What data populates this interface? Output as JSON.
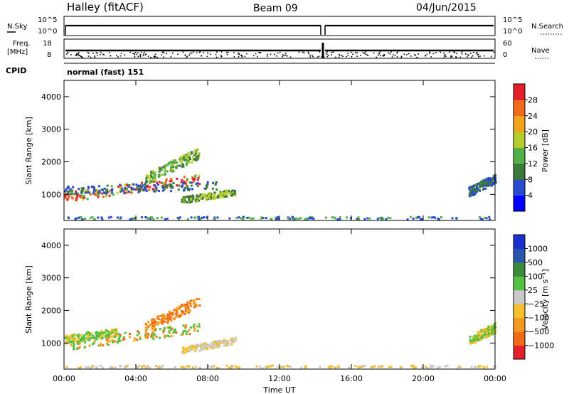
{
  "header": {
    "station": "Halley (fitACF)",
    "beam": "Beam 09",
    "date": "04/Jun/2015"
  },
  "panels": {
    "nsky": {
      "label": "N.Sky",
      "ticks": [
        "10^5",
        "10^0"
      ]
    },
    "nsearch": {
      "label": "N.Search",
      "ticks": [
        "10^5",
        "10^0"
      ]
    },
    "freq": {
      "label_top": "Freq.",
      "label_bottom": "[MHz]",
      "ticks": [
        "18",
        "8"
      ]
    },
    "nave": {
      "label": "Nave",
      "ticks": [
        "60",
        "0"
      ]
    },
    "cpid": {
      "label": "CPID",
      "text": "normal (fast) 151"
    }
  },
  "chart_data": [
    {
      "type": "heatmap",
      "ylabel": "Slant Range [km]",
      "ylim": [
        200,
        4500
      ],
      "yticks": [
        1000,
        2000,
        3000,
        4000
      ],
      "xticks": [
        "00:00",
        "04:00",
        "08:00",
        "12:00",
        "16:00",
        "20:00",
        "00:00"
      ],
      "xlim": [
        0,
        24
      ],
      "colorbar": {
        "label": "Power [dB]",
        "ticks": [
          "28",
          "24",
          "20",
          "16",
          "12",
          "8",
          "4"
        ],
        "colors": [
          "#0000ff",
          "#2a4bd0",
          "#3c7a3c",
          "#52b24a",
          "#b5cc2a",
          "#f3a21e",
          "#ef6a1a",
          "#e5202a"
        ]
      }
    },
    {
      "type": "heatmap",
      "ylabel": "Slant Range [km]",
      "ylim": [
        200,
        4500
      ],
      "yticks": [
        1000,
        2000,
        3000,
        4000
      ],
      "xticks": [
        "00:00",
        "04:00",
        "08:00",
        "12:00",
        "16:00",
        "20:00",
        "00:00"
      ],
      "xlim": [
        0,
        24
      ],
      "xlabel": "Time UT",
      "colorbar": {
        "label": "Velocity [m s⁻¹]",
        "ticks": [
          "1000",
          "500",
          "100",
          "25",
          "−25",
          "−100",
          "−500",
          "−1000"
        ],
        "colors": [
          "#e5202a",
          "#ef6a1a",
          "#f39a1e",
          "#f3bf2a",
          "#c8c8c8",
          "#52c040",
          "#3c8a3c",
          "#2a56b0",
          "#1a30d0"
        ]
      }
    }
  ]
}
